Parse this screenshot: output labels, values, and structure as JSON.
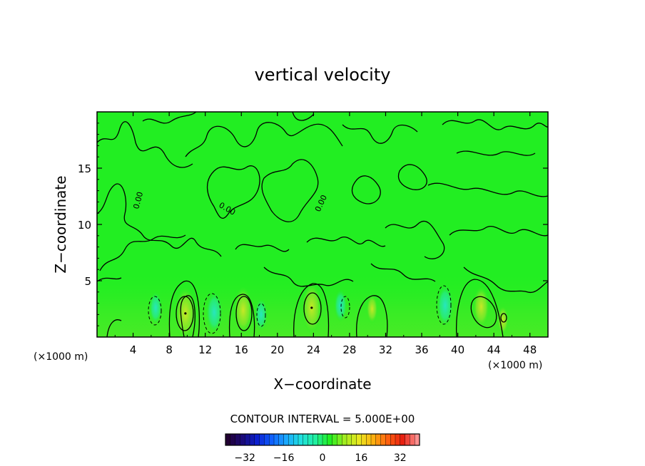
{
  "chart_data": {
    "type": "heatmap",
    "title": "vertical velocity",
    "xlabel": "X−coordinate",
    "ylabel": "Z−coordinate",
    "x_unit": "(×1000 m)",
    "z_unit": "(×1000 m)",
    "xlim": [
      0,
      50
    ],
    "ylim": [
      0,
      20
    ],
    "x_ticks": [
      4,
      8,
      12,
      16,
      20,
      24,
      28,
      32,
      36,
      40,
      44,
      48
    ],
    "y_ticks": [
      5,
      10,
      15
    ],
    "contour_interval_text": "CONTOUR INTERVAL = 5.000E+00",
    "contour_interval": 5,
    "colorbar": {
      "min": -40,
      "max": 40,
      "ticks": [
        -32,
        -16,
        0,
        16,
        32
      ],
      "colors": [
        "#220033",
        "#1a0a7a",
        "#0b1fd0",
        "#1060ff",
        "#1aa8ff",
        "#20e0e0",
        "#20f0a0",
        "#22ee22",
        "#a0ee20",
        "#e8e820",
        "#ffb010",
        "#ff6010",
        "#e82010",
        "#ff9090"
      ]
    },
    "contour_labels": [
      "0.00",
      "0.00",
      "0.00"
    ],
    "features": [
      {
        "kind": "updraft",
        "x": 9.8,
        "z": 2.1,
        "peak": 11
      },
      {
        "kind": "downdraft",
        "x": 6.5,
        "z": 2.6,
        "peak": -4
      },
      {
        "kind": "downdraft",
        "x": 13.0,
        "z": 2.2,
        "peak": -7
      },
      {
        "kind": "updraft",
        "x": 16.2,
        "z": 2.4,
        "peak": 9
      },
      {
        "kind": "downdraft",
        "x": 18.2,
        "z": 2.0,
        "peak": -4
      },
      {
        "kind": "updraft",
        "x": 23.8,
        "z": 2.6,
        "peak": 10
      },
      {
        "kind": "downdraft",
        "x": 27.0,
        "z": 2.8,
        "peak": -4
      },
      {
        "kind": "updraft",
        "x": 30.5,
        "z": 2.5,
        "peak": 3
      },
      {
        "kind": "downdraft",
        "x": 38.6,
        "z": 2.8,
        "peak": -7
      },
      {
        "kind": "updraft",
        "x": 42.6,
        "z": 2.7,
        "peak": 7
      },
      {
        "kind": "updraft",
        "x": 45.0,
        "z": 1.5,
        "peak": 3
      }
    ]
  }
}
